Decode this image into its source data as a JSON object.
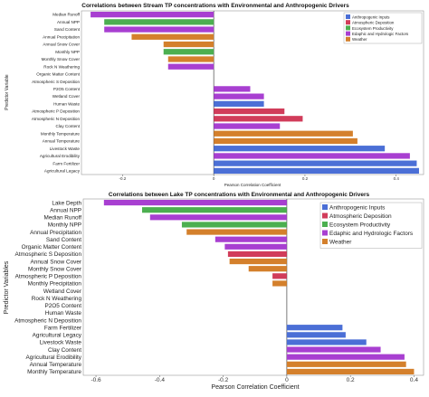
{
  "charts": [
    {
      "title": "Correlations between Stream TP concentrations with Environmental and Anthropogenic Drivers",
      "xlabel": "Pearson Correlation Coefficient",
      "ylabel": "Predictor Variable",
      "legend": [
        {
          "key": "anthro",
          "label": "Anthropogenic Inputs",
          "color": "#4b6fd6"
        },
        {
          "key": "atmo",
          "label": "Atmospheric Deposition",
          "color": "#d13c5a"
        },
        {
          "key": "eco",
          "label": "Ecosystem Productivity",
          "color": "#4caf50"
        },
        {
          "key": "edaphic",
          "label": "Edaphic and Hydrologic Factors",
          "color": "#a83fd1"
        },
        {
          "key": "weather",
          "label": "Weather",
          "color": "#d4802c"
        }
      ]
    },
    {
      "title": "Correlations between Lake TP concentrations with Environmental and Anthropogenic Drivers",
      "xlabel": "Pearson Correlation Coefficient",
      "ylabel": "Predictor Variables",
      "legend": [
        {
          "key": "anthro",
          "label": "Anthropogenic Inputs",
          "color": "#4b6fd6"
        },
        {
          "key": "atmo",
          "label": "Atmospheric Deposition",
          "color": "#d13c5a"
        },
        {
          "key": "eco",
          "label": "Ecosystem Productivity",
          "color": "#4caf50"
        },
        {
          "key": "edaphic",
          "label": "Edaphic and Hydrologic Factors",
          "color": "#a83fd1"
        },
        {
          "key": "weather",
          "label": "Weather",
          "color": "#d4802c"
        }
      ]
    }
  ],
  "chart_data": [
    {
      "type": "bar",
      "orientation": "horizontal",
      "title": "Correlations between Stream TP concentrations with Environmental and Anthropogenic Drivers",
      "xlabel": "Pearson Correlation Coefficient",
      "ylabel": "Predictor Variable",
      "xlim": [
        -0.29,
        0.46
      ],
      "xticks": [
        -0.2,
        0,
        0.2,
        0.4
      ],
      "xtick_labels": [
        "-0.2",
        "0",
        "0.2",
        "0.4"
      ],
      "legend_position": "top-right",
      "categories": [
        "Median Runoff",
        "Annual NPP",
        "Sand Content",
        "Annual Precipitation",
        "Annual Snow Cover",
        "Monthly NPP",
        "Monthly Snow Cover",
        "Rock N Weathering",
        "Organic Matter Content",
        "Atmospheric S Deposition",
        "P2O5 Content",
        "Wetland Cover",
        "Human Waste",
        "Atmospheric P Deposition",
        "Atmospheric N Deposition",
        "Clay Content",
        "Monthly Temperature",
        "Annual Temperature",
        "Livestock Waste",
        "Agricultural Erodibility",
        "Farm Fertilizer",
        "Agricultural Legacy"
      ],
      "values": [
        -0.27,
        -0.24,
        -0.24,
        -0.18,
        -0.11,
        -0.11,
        -0.1,
        -0.1,
        0,
        0,
        0.08,
        0.11,
        0.11,
        0.155,
        0.195,
        0.145,
        0.305,
        0.315,
        0.375,
        0.43,
        0.445,
        0.45
      ],
      "groups": [
        "edaphic",
        "eco",
        "edaphic",
        "weather",
        "weather",
        "eco",
        "weather",
        "edaphic",
        "edaphic",
        "atmo",
        "edaphic",
        "edaphic",
        "anthro",
        "atmo",
        "atmo",
        "edaphic",
        "weather",
        "weather",
        "anthro",
        "edaphic",
        "anthro",
        "anthro"
      ]
    },
    {
      "type": "bar",
      "orientation": "horizontal",
      "title": "Correlations between Lake TP concentrations with Environmental and Anthropogenic Drivers",
      "xlabel": "Pearson Correlation Coefficient",
      "ylabel": "Predictor Variables",
      "xlim": [
        -0.64,
        0.43
      ],
      "xticks": [
        -0.6,
        -0.4,
        -0.2,
        0,
        0.2,
        0.4
      ],
      "xtick_labels": [
        "-0.6",
        "-0.4",
        "-0.2",
        "0",
        "0.2",
        "0.4"
      ],
      "legend_position": "top-right",
      "categories": [
        "Lake Depth",
        "Annual NPP",
        "Median Runoff",
        "Monthly NPP",
        "Annual Precipitation",
        "Sand Content",
        "Organic Matter Content",
        "Atmospheric S Deposition",
        "Annual Snow Cover",
        "Monthly Snow Cover",
        "Atmospheric P Deposition",
        "Monthly Precipitation",
        "Wetland Cover",
        "Rock N Weathering",
        "P2O5 Content",
        "Human Waste",
        "Atmospheric N Deposition",
        "Farm Fertilizer",
        "Agricultural Legacy",
        "Livestock Waste",
        "Clay Content",
        "Agricultural Erodibility",
        "Annual Temperature",
        "Monthly Temperature"
      ],
      "values": [
        -0.575,
        -0.455,
        -0.43,
        -0.33,
        -0.315,
        -0.225,
        -0.195,
        -0.185,
        -0.18,
        -0.12,
        -0.045,
        -0.045,
        0,
        0,
        0,
        0,
        0,
        0.175,
        0.185,
        0.25,
        0.295,
        0.37,
        0.375,
        0.4
      ],
      "groups": [
        "edaphic",
        "eco",
        "edaphic",
        "eco",
        "weather",
        "edaphic",
        "edaphic",
        "atmo",
        "weather",
        "weather",
        "atmo",
        "weather",
        "edaphic",
        "edaphic",
        "edaphic",
        "anthro",
        "atmo",
        "anthro",
        "anthro",
        "anthro",
        "edaphic",
        "edaphic",
        "weather",
        "weather"
      ]
    }
  ]
}
